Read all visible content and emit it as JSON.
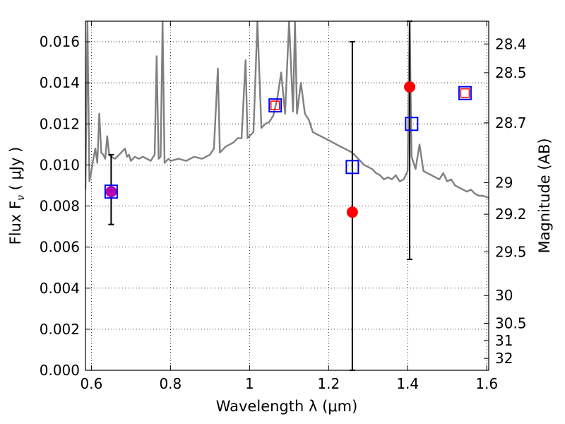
{
  "chart_data": {
    "type": "line",
    "title": "",
    "xlabel": "Wavelength  λ (μm)",
    "ylabel": "Flux  F",
    "ylabel_sub": "ν",
    "ylabel_unit": "  ( μJy )",
    "ylabel_right": "Magnitude (AB)",
    "xlim": [
      0.585,
      1.605
    ],
    "ylim": [
      0.0,
      0.017
    ],
    "grid": true,
    "x_ticks": [
      0.6,
      0.8,
      1.0,
      1.2,
      1.4,
      1.6
    ],
    "x_tick_labels": [
      "0.6",
      "0.8",
      "1",
      "1.2",
      "1.4",
      "1.6"
    ],
    "y_ticks": [
      0.0,
      0.002,
      0.004,
      0.006,
      0.008,
      0.01,
      0.012,
      0.014,
      0.016
    ],
    "y_tick_labels": [
      "0.000",
      "0.002",
      "0.004",
      "0.006",
      "0.008",
      "0.010",
      "0.012",
      "0.014",
      "0.016"
    ],
    "right_ticks": [
      {
        "label": "28.4",
        "flux": 0.01589
      },
      {
        "label": "28.5",
        "flux": 0.01449
      },
      {
        "label": "28.7",
        "flux": 0.01205
      },
      {
        "label": "29",
        "flux": 0.00914
      },
      {
        "label": "29.2",
        "flux": 0.0076
      },
      {
        "label": "29.5",
        "flux": 0.00577
      },
      {
        "label": "30",
        "flux": 0.00364
      },
      {
        "label": "30.5",
        "flux": 0.00229
      },
      {
        "label": "31",
        "flux": 0.00145
      },
      {
        "label": "32",
        "flux": 0.00058
      }
    ],
    "series": [
      {
        "name": "spectrum",
        "color": "#808080",
        "x": [
          0.585,
          0.59,
          0.595,
          0.6,
          0.605,
          0.61,
          0.615,
          0.62,
          0.625,
          0.63,
          0.635,
          0.64,
          0.645,
          0.65,
          0.66,
          0.67,
          0.68,
          0.685,
          0.69,
          0.695,
          0.7,
          0.705,
          0.71,
          0.72,
          0.73,
          0.74,
          0.75,
          0.76,
          0.765,
          0.77,
          0.775,
          0.78,
          0.785,
          0.79,
          0.795,
          0.8,
          0.82,
          0.84,
          0.86,
          0.88,
          0.9,
          0.91,
          0.92,
          0.925,
          0.93,
          0.94,
          0.95,
          0.96,
          0.97,
          0.98,
          0.99,
          0.995,
          1.0,
          1.01,
          1.02,
          1.03,
          1.04,
          1.05,
          1.06,
          1.07,
          1.08,
          1.09,
          1.1,
          1.11,
          1.115,
          1.12,
          1.13,
          1.14,
          1.15,
          1.16,
          1.17,
          1.18,
          1.19,
          1.2,
          1.21,
          1.22,
          1.23,
          1.24,
          1.25,
          1.26,
          1.27,
          1.28,
          1.29,
          1.3,
          1.31,
          1.32,
          1.33,
          1.34,
          1.35,
          1.36,
          1.37,
          1.38,
          1.39,
          1.4,
          1.405,
          1.41,
          1.42,
          1.43,
          1.44,
          1.45,
          1.46,
          1.47,
          1.48,
          1.49,
          1.5,
          1.51,
          1.52,
          1.53,
          1.54,
          1.55,
          1.56,
          1.57,
          1.58,
          1.59,
          1.605
        ],
        "y": [
          0.0088,
          0.017,
          0.0092,
          0.0097,
          0.0103,
          0.0108,
          0.0101,
          0.0125,
          0.0106,
          0.0105,
          0.0103,
          0.0114,
          0.0105,
          0.0104,
          0.0103,
          0.0105,
          0.0107,
          0.0108,
          0.0104,
          0.0105,
          0.0102,
          0.0103,
          0.0104,
          0.0103,
          0.0104,
          0.0103,
          0.0102,
          0.0105,
          0.0153,
          0.0103,
          0.0104,
          0.017,
          0.0101,
          0.0102,
          0.0103,
          0.0102,
          0.0103,
          0.0102,
          0.0104,
          0.0103,
          0.0105,
          0.0108,
          0.0147,
          0.0106,
          0.0107,
          0.0109,
          0.011,
          0.0111,
          0.0113,
          0.0113,
          0.0151,
          0.0113,
          0.0114,
          0.0116,
          0.017,
          0.0118,
          0.012,
          0.0121,
          0.0124,
          0.0132,
          0.0145,
          0.0125,
          0.017,
          0.0126,
          0.017,
          0.0125,
          0.014,
          0.0125,
          0.0122,
          0.0116,
          0.0115,
          0.0114,
          0.0113,
          0.0112,
          0.0111,
          0.011,
          0.0109,
          0.0108,
          0.0107,
          0.0106,
          0.0104,
          0.0102,
          0.01,
          0.0099,
          0.0098,
          0.0096,
          0.0095,
          0.0093,
          0.0094,
          0.0093,
          0.0095,
          0.0092,
          0.0093,
          0.0097,
          0.017,
          0.0104,
          0.0098,
          0.011,
          0.0097,
          0.0096,
          0.0095,
          0.0094,
          0.0093,
          0.0096,
          0.0092,
          0.0093,
          0.009,
          0.0089,
          0.0088,
          0.0087,
          0.0088,
          0.0086,
          0.0085,
          0.0085,
          0.0084
        ]
      },
      {
        "name": "observed photometry",
        "marker": "circle",
        "color": "#ff0000",
        "x": [
          0.65,
          1.26,
          1.405
        ],
        "y": [
          0.0087,
          0.0077,
          0.0138
        ]
      },
      {
        "name": "model photometry",
        "marker": "square",
        "color": "#0000ff",
        "x": [
          0.65,
          1.065,
          1.26,
          1.41,
          1.545
        ],
        "y": [
          0.0087,
          0.0129,
          0.0099,
          0.012,
          0.0135
        ]
      },
      {
        "name": "observed upper points",
        "marker": "square",
        "color": "#ff0000",
        "x": [
          1.065,
          1.545
        ],
        "y": [
          0.0129,
          0.0135
        ]
      }
    ],
    "error_bars": [
      {
        "x": 0.65,
        "low": 0.0071,
        "high": 0.0105
      },
      {
        "x": 1.26,
        "low": 0.0,
        "high": 0.016
      },
      {
        "x": 1.405,
        "low": 0.0054,
        "high": 0.017
      }
    ]
  }
}
